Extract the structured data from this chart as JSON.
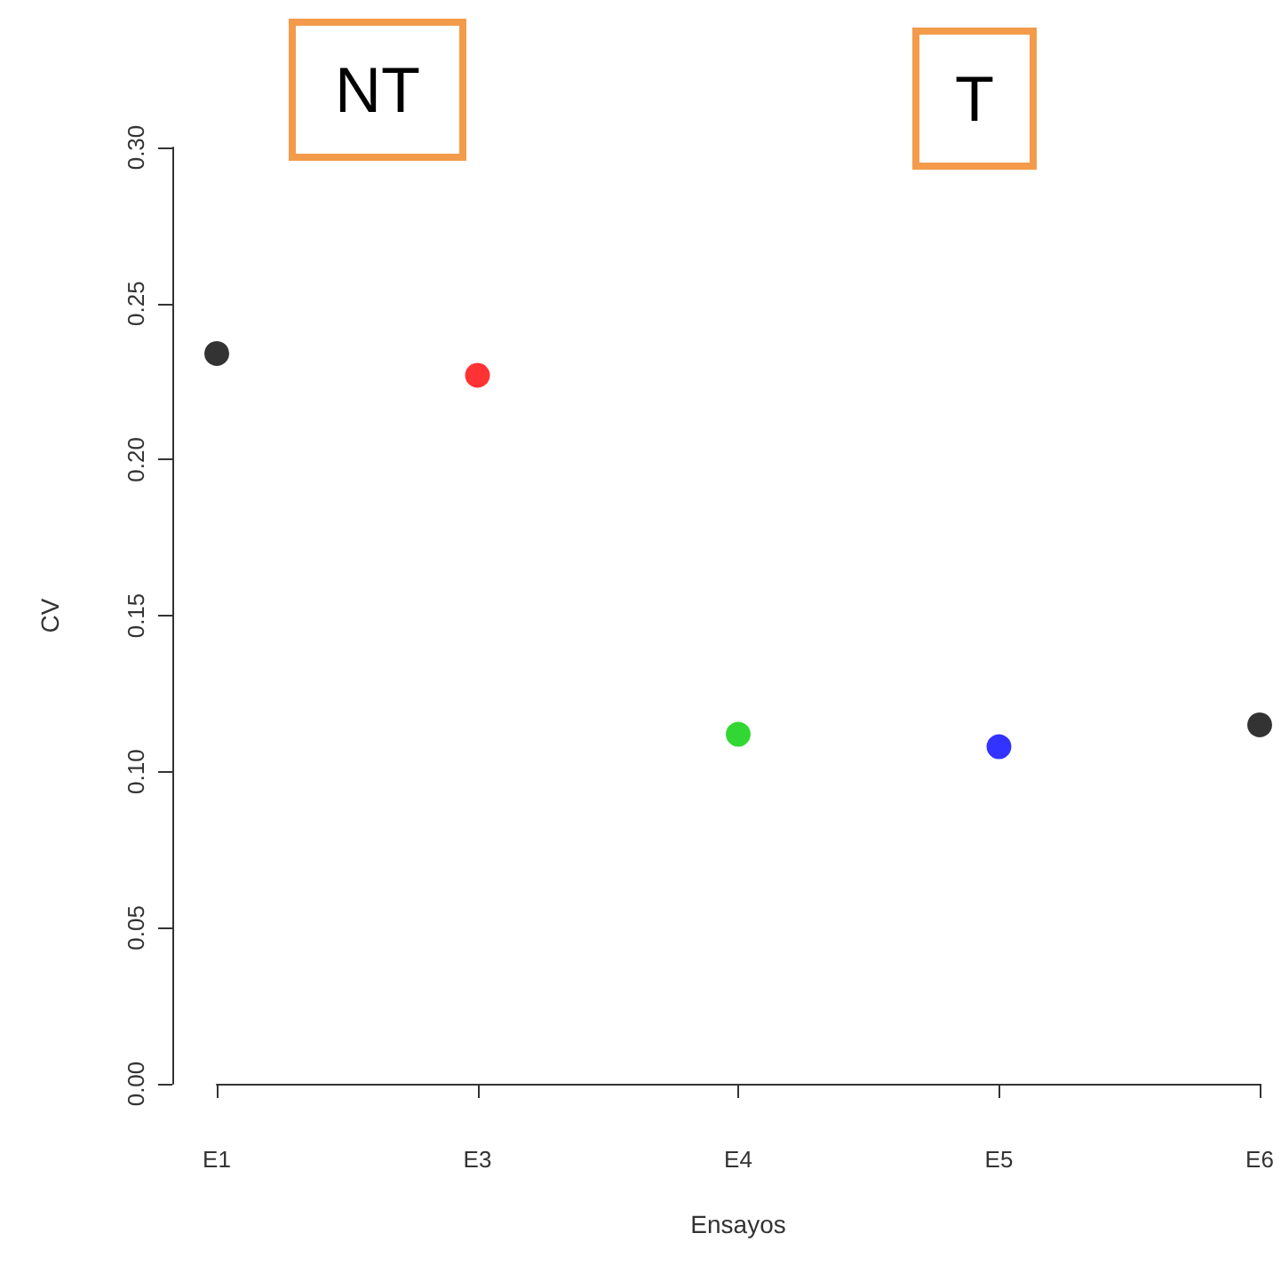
{
  "chart_data": {
    "type": "scatter",
    "categories": [
      "E1",
      "E3",
      "E4",
      "E5",
      "E6"
    ],
    "values": [
      0.234,
      0.227,
      0.112,
      0.108,
      0.115
    ],
    "colors": [
      "#000000",
      "#ff0000",
      "#00cd00",
      "#0000ff",
      "#000000"
    ],
    "xlabel": "Ensayos",
    "ylabel": "CV",
    "ylim": [
      0,
      0.3
    ],
    "yticks": [
      {
        "value": 0,
        "label": "0.00"
      },
      {
        "value": 0.05,
        "label": "0.05"
      },
      {
        "value": 0.1,
        "label": "0.10"
      },
      {
        "value": 0.15,
        "label": "0.15"
      },
      {
        "value": 0.2,
        "label": "0.20"
      },
      {
        "value": 0.25,
        "label": "0.25"
      },
      {
        "value": 0.3,
        "label": "0.30"
      }
    ],
    "annotations": [
      "NT",
      "T"
    ],
    "marker": "circle",
    "grid": false
  }
}
